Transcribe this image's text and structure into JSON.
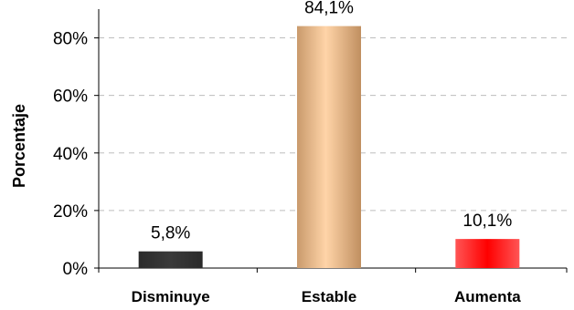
{
  "chart_data": {
    "type": "bar",
    "categories": [
      "Disminuye",
      "Estable",
      "Aumenta"
    ],
    "values": [
      5.8,
      84.1,
      10.1
    ],
    "data_labels": [
      "5,8%",
      "84,1%",
      "10,1%"
    ],
    "ylabel": "Porcentaje",
    "xlabel": "",
    "ylim": [
      0,
      90
    ],
    "yticks": [
      0,
      20,
      40,
      60,
      80
    ],
    "ytick_labels": [
      "0%",
      "20%",
      "40%",
      "60%",
      "80%"
    ],
    "grid": "horizontal-dashed",
    "legend": "none",
    "bar_colors": [
      "#333333",
      "#e8b98a",
      "#ff2a2a"
    ]
  }
}
